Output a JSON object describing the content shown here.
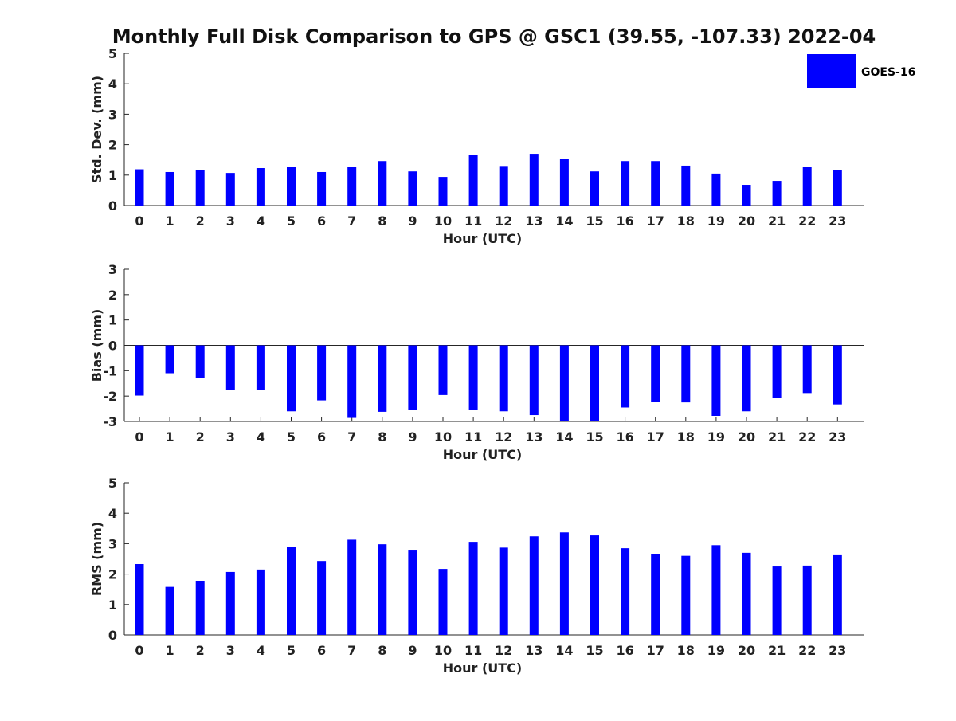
{
  "chart_data": {
    "type": "bar",
    "title": "Monthly Full Disk Comparison to GPS @ GSC1 (39.55, -107.33) 2022-04",
    "legend": {
      "label": "GOES-16",
      "placement": "top-right"
    },
    "bar_color": "#0000ff",
    "categories": [
      "0",
      "1",
      "2",
      "3",
      "4",
      "5",
      "6",
      "7",
      "8",
      "9",
      "10",
      "11",
      "12",
      "13",
      "14",
      "15",
      "16",
      "17",
      "18",
      "19",
      "20",
      "21",
      "22",
      "23"
    ],
    "panels": [
      {
        "xlabel": "Hour (UTC)",
        "ylabel": "Std. Dev. (mm)",
        "ylim": [
          0,
          5
        ],
        "yticks": [
          "0",
          "1",
          "2",
          "3",
          "4",
          "5"
        ],
        "series": [
          {
            "name": "GOES-16",
            "values": [
              1.19,
              1.1,
              1.17,
              1.07,
              1.23,
              1.27,
              1.1,
              1.26,
              1.46,
              1.12,
              0.94,
              1.67,
              1.3,
              1.7,
              1.52,
              1.12,
              1.46,
              1.46,
              1.31,
              1.05,
              0.68,
              0.81,
              1.28,
              1.17
            ]
          }
        ]
      },
      {
        "xlabel": "Hour (UTC)",
        "ylabel": "Bias (mm)",
        "ylim": [
          -3,
          3
        ],
        "yticks": [
          "-3",
          "-2",
          "-1",
          "0",
          "1",
          "2",
          "3"
        ],
        "series": [
          {
            "name": "GOES-16",
            "values": [
              -1.98,
              -1.1,
              -1.3,
              -1.76,
              -1.76,
              -2.6,
              -2.17,
              -2.86,
              -2.62,
              -2.56,
              -1.96,
              -2.56,
              -2.6,
              -2.75,
              -3.0,
              -3.0,
              -2.45,
              -2.23,
              -2.25,
              -2.78,
              -2.6,
              -2.07,
              -1.88,
              -2.33
            ]
          }
        ]
      },
      {
        "xlabel": "Hour (UTC)",
        "ylabel": "RMS (mm)",
        "ylim": [
          0,
          5
        ],
        "yticks": [
          "0",
          "1",
          "2",
          "3",
          "4",
          "5"
        ],
        "series": [
          {
            "name": "GOES-16",
            "values": [
              2.33,
              1.58,
              1.78,
              2.07,
              2.15,
              2.9,
              2.43,
              3.13,
              2.98,
              2.8,
              2.17,
              3.06,
              2.87,
              3.24,
              3.37,
              3.27,
              2.85,
              2.67,
              2.6,
              2.95,
              2.7,
              2.25,
              2.28,
              2.62
            ]
          }
        ]
      }
    ]
  }
}
